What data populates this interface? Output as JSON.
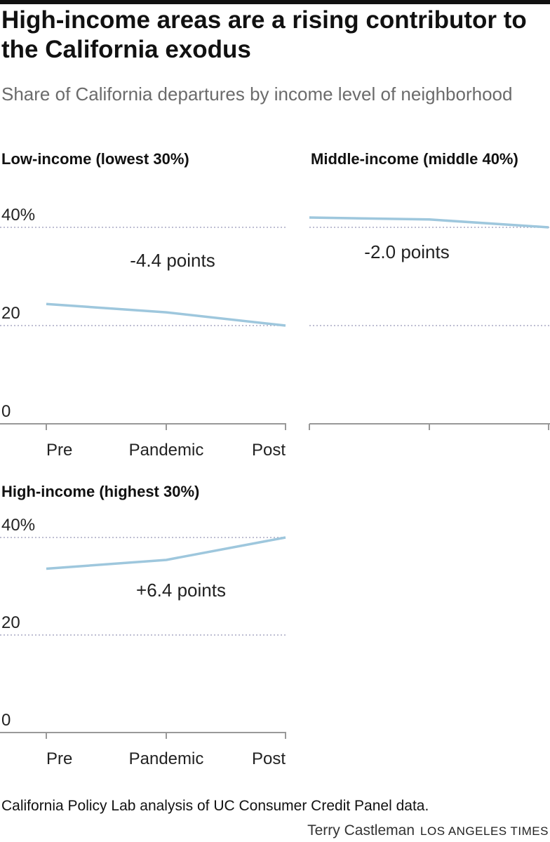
{
  "title": "High-income areas are a rising contributor to the California exodus",
  "subtitle": "Share of California departures by income level of neighborhood",
  "chart_data": [
    {
      "type": "line",
      "title": "Low-income (lowest 30%)",
      "categories": [
        "Pre",
        "Pandemic",
        "Post"
      ],
      "values": [
        24.4,
        22.7,
        20.0
      ],
      "color": "#9ec7dd",
      "annotation": "-4.4 points",
      "ylim": [
        0,
        44
      ],
      "yticks": [
        0,
        20,
        {
          "value": 40,
          "label": "40%"
        }
      ],
      "tick_labels": true,
      "grid": true
    },
    {
      "type": "line",
      "title": "Middle-income (middle 40%)",
      "categories": [
        null,
        null,
        null
      ],
      "values": [
        42.0,
        41.6,
        40.0
      ],
      "color": "#9ec7dd",
      "annotation": "-2.0 points",
      "ylim": [
        0,
        44
      ],
      "yticks": [
        0,
        20,
        40
      ],
      "tick_labels": false,
      "grid": true
    },
    {
      "type": "line",
      "title": "High-income (highest 30%)",
      "categories": [
        "Pre",
        "Pandemic",
        "Post"
      ],
      "values": [
        33.6,
        35.4,
        40.0
      ],
      "color": "#9ec7dd",
      "annotation": "+6.4 points",
      "ylim": [
        0,
        44
      ],
      "yticks": [
        0,
        20,
        {
          "value": 40,
          "label": "40%"
        }
      ],
      "tick_labels": true,
      "grid": true
    }
  ],
  "source": "California Policy Lab analysis of UC Consumer Credit Panel data.",
  "byline": "Terry Castleman",
  "outlet": "LOS ANGELES TIMES"
}
